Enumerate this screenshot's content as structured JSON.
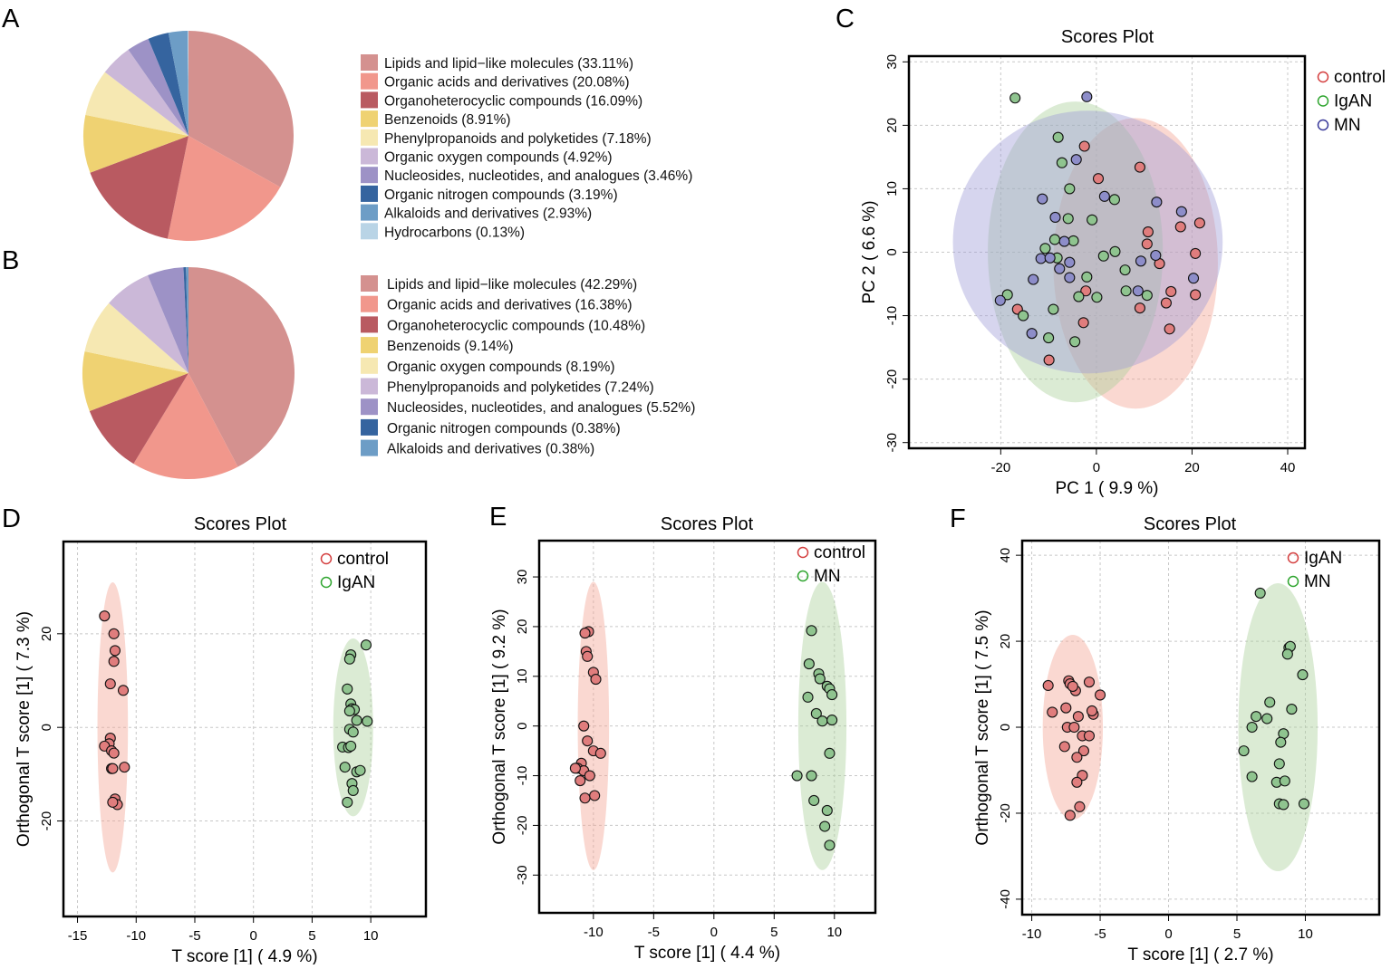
{
  "panel_labels": [
    "A",
    "B",
    "C",
    "D",
    "E",
    "F"
  ],
  "palette": [
    "#d4918f",
    "#f1978c",
    "#b95a61",
    "#efd272",
    "#f6e8b2",
    "#cbb8d8",
    "#9d92c6",
    "#35649f",
    "#6d9dc6",
    "#b9d4e6"
  ],
  "group_colors": {
    "control": {
      "fill": "#e07d7d",
      "ellipse": "#f2a391",
      "legend": "#d43f3f"
    },
    "IgAN": {
      "fill": "#8fc48f",
      "ellipse": "#a9cf98",
      "legend": "#2fa52f"
    },
    "MN": {
      "fill": "#8d8dc9",
      "ellipse": "#9d9bd6",
      "legend": "#3a3a9a"
    }
  },
  "chart_data": [
    {
      "panel": "A",
      "type": "pie",
      "labels": [
        "Lipids and lipid−like molecules (33.11%)",
        "Organic acids and derivatives (20.08%)",
        "Organoheterocyclic compounds (16.09%)",
        "Benzenoids (8.91%)",
        "Phenylpropanoids and polyketides (7.18%)",
        "Organic oxygen compounds (4.92%)",
        "Nucleosides, nucleotides, and analogues (3.46%)",
        "Organic nitrogen compounds (3.19%)",
        "Alkaloids and derivatives (2.93%)",
        "Hydrocarbons (0.13%)"
      ],
      "values": [
        33.11,
        20.08,
        16.09,
        8.91,
        7.18,
        4.92,
        3.46,
        3.19,
        2.93,
        0.13
      ],
      "legend": "right"
    },
    {
      "panel": "B",
      "type": "pie",
      "labels": [
        "Lipids and lipid−like molecules (42.29%)",
        "Organic acids and derivatives (16.38%)",
        "Organoheterocyclic compounds (10.48%)",
        "Benzenoids (9.14%)",
        "Organic oxygen compounds (8.19%)",
        "Phenylpropanoids and polyketides (7.24%)",
        "Nucleosides, nucleotides, and analogues (5.52%)",
        "Organic nitrogen compounds (0.38%)",
        "Alkaloids and derivatives (0.38%)"
      ],
      "values": [
        42.29,
        16.38,
        10.48,
        9.14,
        8.19,
        7.24,
        5.52,
        0.38,
        0.38
      ],
      "legend": "right"
    },
    {
      "panel": "C",
      "type": "scatter",
      "title": "Scores Plot",
      "xlabel": "PC 1 ( 9.9 %)",
      "ylabel": "PC 2 ( 6.6 %)",
      "xlim": [
        -39.2,
        43.6
      ],
      "ylim": [
        -30.9,
        30.9
      ],
      "xticks": [
        -20,
        0,
        20,
        40
      ],
      "yticks": [
        -30,
        -20,
        -10,
        0,
        10,
        20,
        30
      ],
      "grid": true,
      "legend": "top-right, outside",
      "series": [
        {
          "name": "control",
          "ellipse": {
            "center": [
              8.2,
              -1.75
            ],
            "radii": [
              17.2,
              22.9
            ]
          },
          "points": [
            [
              -2.5,
              16.7
            ],
            [
              9.1,
              13.4
            ],
            [
              0.4,
              11.6
            ],
            [
              10.8,
              3.2
            ],
            [
              10.6,
              1.3
            ],
            [
              17.6,
              4
            ],
            [
              21.6,
              4.6
            ],
            [
              20.7,
              -0.2
            ],
            [
              13.2,
              -1.8
            ],
            [
              15.6,
              -6.2
            ],
            [
              14.6,
              -8
            ],
            [
              20.7,
              -6.7
            ],
            [
              9.1,
              -8.8
            ],
            [
              15.3,
              -12.1
            ],
            [
              -2.2,
              -6.1
            ],
            [
              -2.7,
              -11.1
            ],
            [
              -16.5,
              -9
            ],
            [
              -9.9,
              -17
            ]
          ]
        },
        {
          "name": "IgAN",
          "ellipse": {
            "center": [
              -4.4,
              0.05
            ],
            "radii": [
              18.3,
              23.7
            ]
          },
          "points": [
            [
              -17,
              24.3
            ],
            [
              -8,
              18.1
            ],
            [
              -7.2,
              14.1
            ],
            [
              -5.6,
              10
            ],
            [
              -5.9,
              5.3
            ],
            [
              -0.9,
              5.1
            ],
            [
              3.8,
              8.3
            ],
            [
              -8.7,
              2
            ],
            [
              -4.8,
              1.8
            ],
            [
              -10.7,
              0.6
            ],
            [
              -8.2,
              -0.9
            ],
            [
              1.5,
              -0.6
            ],
            [
              3.9,
              0.1
            ],
            [
              6,
              -2.8
            ],
            [
              -2,
              -3.9
            ],
            [
              -3.7,
              -7
            ],
            [
              0.1,
              -7.1
            ],
            [
              6.2,
              -6.1
            ],
            [
              10.6,
              -6.8
            ],
            [
              -18.6,
              -6.7
            ],
            [
              -15.3,
              -10
            ],
            [
              -9,
              -9
            ],
            [
              -10,
              -13.5
            ],
            [
              -4.5,
              -14.1
            ]
          ]
        },
        {
          "name": "MN",
          "ellipse": {
            "center": [
              -1.8,
              1.6
            ],
            "radii": [
              28.2,
              20.7
            ]
          },
          "points": [
            [
              -2,
              24.5
            ],
            [
              -4.2,
              14.6
            ],
            [
              -11.3,
              8.4
            ],
            [
              1.7,
              8.8
            ],
            [
              12.6,
              7.9
            ],
            [
              17.8,
              6.4
            ],
            [
              -8.6,
              5.5
            ],
            [
              -6.7,
              1.7
            ],
            [
              -11.6,
              -1
            ],
            [
              -9.7,
              -0.9
            ],
            [
              -7.7,
              -2.6
            ],
            [
              -5.6,
              -1.6
            ],
            [
              -5.6,
              -4
            ],
            [
              -13.2,
              -4.3
            ],
            [
              9.3,
              -1.4
            ],
            [
              12.4,
              -0.5
            ],
            [
              20.3,
              -4.1
            ],
            [
              8.7,
              -6.1
            ],
            [
              -20.1,
              -7.6
            ],
            [
              -13.5,
              -12.8
            ]
          ]
        }
      ]
    },
    {
      "panel": "D",
      "type": "scatter",
      "title": "Scores Plot",
      "xlabel": "T score [1] ( 4.9 %)",
      "ylabel": "Orthogonal T score [1] ( 7.3 %)",
      "xlim": [
        -16.2,
        14.7
      ],
      "ylim": [
        -40.4,
        39.7
      ],
      "xticks": [
        -15,
        -10,
        -5,
        0,
        5,
        10
      ],
      "yticks": [
        -20,
        0,
        20
      ],
      "grid": true,
      "legend": "top-right",
      "series": [
        {
          "name": "control",
          "ellipse": {
            "center": [
              -12,
              0
            ],
            "radii": [
              1.3,
              31
            ]
          },
          "points": [
            [
              -12.7,
              23.8
            ],
            [
              -11.9,
              20
            ],
            [
              -11.8,
              16.4
            ],
            [
              -11.9,
              14.1
            ],
            [
              -12.2,
              9.3
            ],
            [
              -11.1,
              7.9
            ],
            [
              -12.2,
              -2.3
            ],
            [
              -12.3,
              -3.5
            ],
            [
              -12.7,
              -4
            ],
            [
              -12.1,
              -5
            ],
            [
              -11.9,
              -5.5
            ],
            [
              -12.1,
              -8.8
            ],
            [
              -12,
              -8.8
            ],
            [
              -11,
              -8.5
            ],
            [
              -11.8,
              -15.3
            ],
            [
              -11.6,
              -16.5
            ],
            [
              -12,
              -16
            ]
          ]
        },
        {
          "name": "IgAN",
          "ellipse": {
            "center": [
              8.5,
              0
            ],
            "radii": [
              1.7,
              19
            ]
          },
          "points": [
            [
              9.6,
              17.6
            ],
            [
              8.3,
              15.5
            ],
            [
              8.2,
              14.6
            ],
            [
              8,
              8.2
            ],
            [
              8.3,
              5
            ],
            [
              8.4,
              4
            ],
            [
              8.6,
              3.8
            ],
            [
              8.2,
              3.5
            ],
            [
              9.7,
              1.3
            ],
            [
              8.8,
              1.5
            ],
            [
              8.2,
              -0.4
            ],
            [
              8.5,
              -1
            ],
            [
              7.6,
              -4.2
            ],
            [
              8.1,
              -4.3
            ],
            [
              8.3,
              -4
            ],
            [
              7.8,
              -8.5
            ],
            [
              8.8,
              -9.5
            ],
            [
              9.1,
              -9.2
            ],
            [
              8.4,
              -12
            ],
            [
              8.5,
              -13.5
            ],
            [
              8,
              -16
            ]
          ]
        }
      ]
    },
    {
      "panel": "E",
      "type": "scatter",
      "title": "Scores Plot",
      "xlabel": "T score [1] ( 4.4 %)",
      "ylabel": "Orthogonal T score [1] ( 9.2 %)",
      "xlim": [
        -14.5,
        13.4
      ],
      "ylim": [
        -37.6,
        37.3
      ],
      "xticks": [
        -10,
        -5,
        0,
        5,
        10
      ],
      "yticks": [
        -30,
        -20,
        -10,
        0,
        10,
        20,
        30
      ],
      "grid": true,
      "legend": "top-right",
      "series": [
        {
          "name": "control",
          "ellipse": {
            "center": [
              -10,
              0
            ],
            "radii": [
              1.3,
              29
            ]
          },
          "points": [
            [
              -10.4,
              19
            ],
            [
              -10.7,
              18.7
            ],
            [
              -10.6,
              15
            ],
            [
              -10.5,
              14
            ],
            [
              -10,
              10.8
            ],
            [
              -9.8,
              9.4
            ],
            [
              -10.8,
              0
            ],
            [
              -10.5,
              -3
            ],
            [
              -10,
              -5
            ],
            [
              -9.4,
              -5.5
            ],
            [
              -11,
              -7.5
            ],
            [
              -11.3,
              -8.5
            ],
            [
              -10.8,
              -9
            ],
            [
              -10.3,
              -10
            ],
            [
              -11.1,
              -11
            ],
            [
              -10.7,
              -14.5
            ],
            [
              -9.9,
              -14
            ],
            [
              -11.5,
              -8.5
            ]
          ]
        },
        {
          "name": "MN",
          "color_key": "IgAN",
          "ellipse": {
            "center": [
              9,
              0
            ],
            "radii": [
              2,
              29
            ]
          },
          "points": [
            [
              8.1,
              19.2
            ],
            [
              7.9,
              12.5
            ],
            [
              8.7,
              10.5
            ],
            [
              8.8,
              9.5
            ],
            [
              9.4,
              8
            ],
            [
              9.6,
              7.5
            ],
            [
              9.8,
              6.3
            ],
            [
              7.8,
              5.8
            ],
            [
              8.5,
              2.5
            ],
            [
              9,
              1
            ],
            [
              9.8,
              1.2
            ],
            [
              9.6,
              -5.5
            ],
            [
              6.9,
              -10
            ],
            [
              8.1,
              -10
            ],
            [
              8.3,
              -15
            ],
            [
              9.4,
              -17
            ],
            [
              9.2,
              -20.2
            ],
            [
              9.6,
              -24
            ]
          ]
        }
      ]
    },
    {
      "panel": "F",
      "type": "scatter",
      "title": "Scores Plot",
      "xlabel": "T score [1] ( 2.7 %)",
      "ylabel": "Orthogonal T score [1] ( 7.5 %)",
      "xlim": [
        -10.7,
        15.4
      ],
      "ylim": [
        -43.6,
        43.4
      ],
      "xticks": [
        -10,
        -5,
        0,
        5,
        10
      ],
      "yticks": [
        -40,
        -20,
        0,
        20,
        40
      ],
      "grid": true,
      "legend": "top-right",
      "series": [
        {
          "name": "IgAN",
          "color_key": "control",
          "ellipse": {
            "center": [
              -7,
              0
            ],
            "radii": [
              2.2,
              21.5
            ]
          },
          "points": [
            [
              -8.8,
              9.7
            ],
            [
              -7.3,
              10.8
            ],
            [
              -7.2,
              10.1
            ],
            [
              -6.8,
              8.5
            ],
            [
              -7,
              9.5
            ],
            [
              -5.8,
              10.5
            ],
            [
              -5,
              7.5
            ],
            [
              -8.5,
              3.5
            ],
            [
              -7.5,
              4.5
            ],
            [
              -6.6,
              2.5
            ],
            [
              -5.5,
              3
            ],
            [
              -5.6,
              3.8
            ],
            [
              -7.4,
              0
            ],
            [
              -6.9,
              0
            ],
            [
              -6.3,
              -2
            ],
            [
              -5.8,
              -2
            ],
            [
              -7.6,
              -4.5
            ],
            [
              -6.2,
              -5.5
            ],
            [
              -6.7,
              -7
            ],
            [
              -6.3,
              -11.2
            ],
            [
              -6.7,
              -12.8
            ],
            [
              -6.5,
              -18.5
            ],
            [
              -7.2,
              -20.5
            ]
          ]
        },
        {
          "name": "MN",
          "color_key": "IgAN",
          "ellipse": {
            "center": [
              8,
              0
            ],
            "radii": [
              2.9,
              33.5
            ]
          },
          "points": [
            [
              6.7,
              31.2
            ],
            [
              8.8,
              18.5
            ],
            [
              8.9,
              18.8
            ],
            [
              8.7,
              17
            ],
            [
              9.8,
              12.2
            ],
            [
              7.4,
              5.8
            ],
            [
              9,
              4.2
            ],
            [
              6.4,
              2.5
            ],
            [
              7.2,
              2
            ],
            [
              6.1,
              0
            ],
            [
              8.4,
              -1.5
            ],
            [
              8.2,
              -3.5
            ],
            [
              5.5,
              -5.5
            ],
            [
              8.1,
              -8.5
            ],
            [
              6.1,
              -11.5
            ],
            [
              7.9,
              -12.8
            ],
            [
              8.5,
              -12.5
            ],
            [
              8.1,
              -17.8
            ],
            [
              8.4,
              -18
            ],
            [
              9.9,
              -17.8
            ]
          ]
        }
      ]
    }
  ]
}
